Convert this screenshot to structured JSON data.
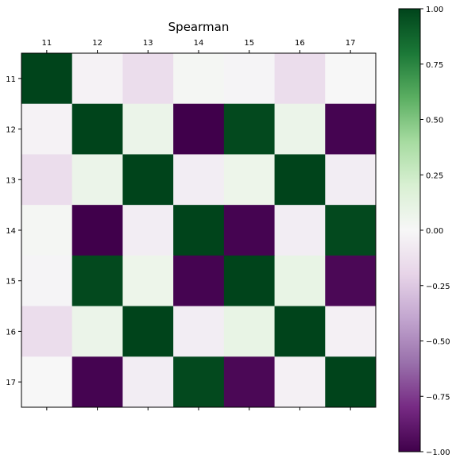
{
  "chart_data": {
    "type": "heatmap",
    "title": "Spearman",
    "categories": [
      "11",
      "12",
      "13",
      "14",
      "15",
      "16",
      "17"
    ],
    "values": [
      [
        1.0,
        -0.03,
        -0.15,
        0.02,
        -0.02,
        -0.15,
        0.0
      ],
      [
        -0.03,
        1.0,
        0.08,
        -1.0,
        0.98,
        0.08,
        -0.98
      ],
      [
        -0.15,
        0.08,
        1.0,
        -0.06,
        0.07,
        1.0,
        -0.06
      ],
      [
        0.02,
        -1.0,
        -0.06,
        1.0,
        -0.98,
        -0.06,
        0.98
      ],
      [
        -0.02,
        0.98,
        0.07,
        -0.98,
        1.0,
        0.1,
        -0.96
      ],
      [
        -0.15,
        0.08,
        1.0,
        -0.06,
        0.1,
        1.0,
        -0.04
      ],
      [
        0.0,
        -0.98,
        -0.06,
        0.98,
        -0.96,
        -0.04,
        1.0
      ]
    ],
    "colorbar": {
      "colormap": "PRGn",
      "range": [
        -1.0,
        1.0
      ],
      "ticks": [
        -1.0,
        -0.75,
        -0.5,
        -0.25,
        0.0,
        0.25,
        0.5,
        0.75,
        1.0
      ],
      "tick_labels": [
        "−1.00",
        "−0.75",
        "−0.50",
        "−0.25",
        "0.00",
        "0.25",
        "0.50",
        "0.75",
        "1.00"
      ]
    },
    "x_tick_position": "top",
    "grid": false
  }
}
